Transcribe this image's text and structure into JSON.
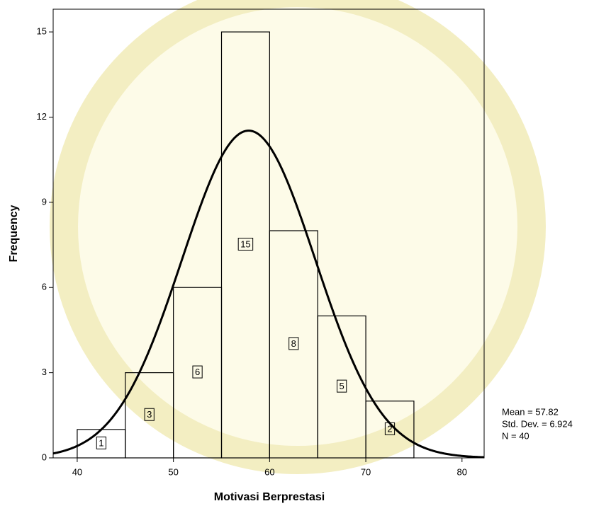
{
  "chart_data": {
    "type": "histogram",
    "x_label": "Motivasi Berprestasi",
    "y_label": "Frequency",
    "bins": [
      40,
      45,
      50,
      55,
      60,
      65,
      70,
      75
    ],
    "values": [
      1,
      3,
      6,
      15,
      8,
      5,
      2
    ],
    "xlim": [
      37.5,
      82.3
    ],
    "ylim": [
      0,
      15.8
    ],
    "xticks": [
      40,
      50,
      60,
      70,
      80
    ],
    "yticks": [
      0,
      3,
      6,
      9,
      12,
      15
    ],
    "color": "#000000",
    "stats": [
      {
        "label": "Mean = 57.82",
        "value": 57.82
      },
      {
        "label": "Std. Dev. = 6.924",
        "value": 6.924
      },
      {
        "label": "N = 40",
        "value": 40
      }
    ]
  }
}
